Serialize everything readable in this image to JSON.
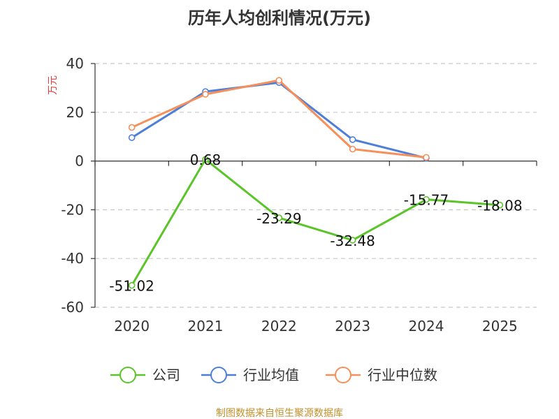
{
  "chart_data": {
    "type": "line",
    "title": "历年人均创利情况(万元)",
    "ylabel": "万元",
    "categories": [
      "2020",
      "2021",
      "2022",
      "2023",
      "2024",
      "2025"
    ],
    "ylim": [
      -60,
      40
    ],
    "yticks": [
      40,
      20,
      0,
      -20,
      -40,
      -60
    ],
    "grid": true,
    "legend_position": "bottom",
    "series": [
      {
        "name": "公司",
        "color": "#5ac428",
        "show_labels": true,
        "values": [
          -51.02,
          0.68,
          -23.29,
          -32.48,
          -15.77,
          -18.08
        ],
        "labels": [
          "-51.02",
          "0.68",
          "-23.29",
          "-32.48",
          "-15.77",
          "-18.08"
        ]
      },
      {
        "name": "行业均值",
        "color": "#4e7fd8",
        "show_labels": false,
        "values": [
          9.6,
          28.5,
          32.2,
          8.8,
          1.2,
          null
        ]
      },
      {
        "name": "行业中位数",
        "color": "#f58f5b",
        "show_labels": false,
        "values": [
          13.8,
          27.4,
          33.1,
          4.9,
          1.5,
          null
        ]
      }
    ]
  },
  "source": "制图数据来自恒生聚源数据库"
}
